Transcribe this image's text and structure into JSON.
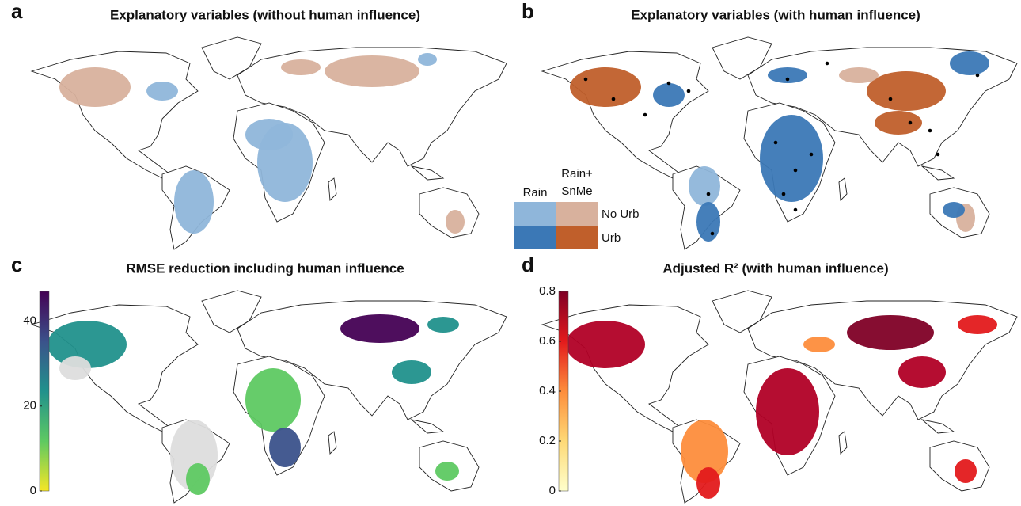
{
  "panels": [
    {
      "letter": "a",
      "title": "Explanatory variables (without human influence)"
    },
    {
      "letter": "b",
      "title": "Explanatory variables (with human influence)",
      "legend": {
        "col_headers": [
          [
            "Rain"
          ],
          [
            "Rain+",
            "SnMe"
          ]
        ],
        "row_labels": [
          "No Urb",
          "Urb"
        ],
        "colors": [
          [
            "#8fb6da",
            "#d8b19d"
          ],
          [
            "#3b78b6",
            "#c05f2b"
          ]
        ]
      }
    },
    {
      "letter": "c",
      "title": "RMSE reduction including human influence",
      "colorbar": {
        "lim": [
          0,
          47
        ],
        "ticks": [
          0,
          20,
          40
        ],
        "colors": [
          "#f5e626",
          "#5ec962",
          "#21918c",
          "#3b528b",
          "#440154"
        ]
      }
    },
    {
      "letter": "d",
      "title": "Adjusted R² (with human influence)",
      "colorbar": {
        "lim": [
          0,
          0.8
        ],
        "ticks": [
          0,
          0.2,
          0.4,
          0.6,
          0.8
        ],
        "colors": [
          "#ffffcc",
          "#fed976",
          "#fd8d3c",
          "#e31a1c",
          "#800026"
        ]
      }
    }
  ]
}
